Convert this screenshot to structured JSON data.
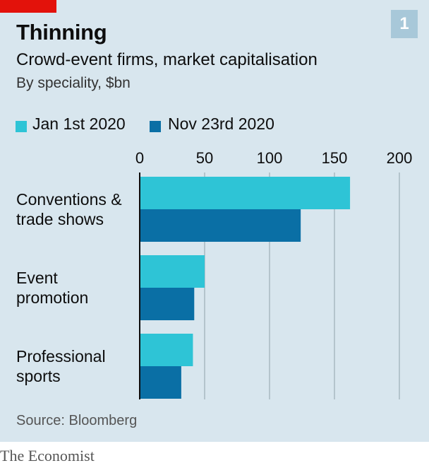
{
  "header": {
    "title": "Thinning",
    "subtitle": "Crowd-event firms, market capitalisation",
    "units": "By speciality, $bn",
    "chart_number": "1"
  },
  "colors": {
    "accent_red": "#e3120b",
    "series_jan": "#2ec4d6",
    "series_nov": "#0a6fa5",
    "background": "#d8e6ee"
  },
  "chart_data": {
    "type": "bar",
    "orientation": "horizontal",
    "title": "Thinning",
    "subtitle": "Crowd-event firms, market capitalisation",
    "xlabel": "By speciality, $bn",
    "categories": [
      "Conventions & trade shows",
      "Event promotion",
      "Professional sports"
    ],
    "category_lines": [
      [
        "Conventions &",
        "trade shows"
      ],
      [
        "Event",
        "promotion"
      ],
      [
        "Professional",
        "sports"
      ]
    ],
    "series": [
      {
        "name": "Jan 1st 2020",
        "color": "#2ec4d6",
        "values": [
          162,
          50,
          41
        ]
      },
      {
        "name": "Nov 23rd 2020",
        "color": "#0a6fa5",
        "values": [
          124,
          42,
          32
        ]
      }
    ],
    "xlim": [
      0,
      200
    ],
    "ticks": [
      0,
      50,
      100,
      150,
      200
    ],
    "tick_labels": [
      "0",
      "50",
      "100",
      "150",
      "200"
    ],
    "grid": true,
    "legend": "top-left"
  },
  "footer": {
    "source": "Source: Bloomberg",
    "brand": "The Economist"
  }
}
